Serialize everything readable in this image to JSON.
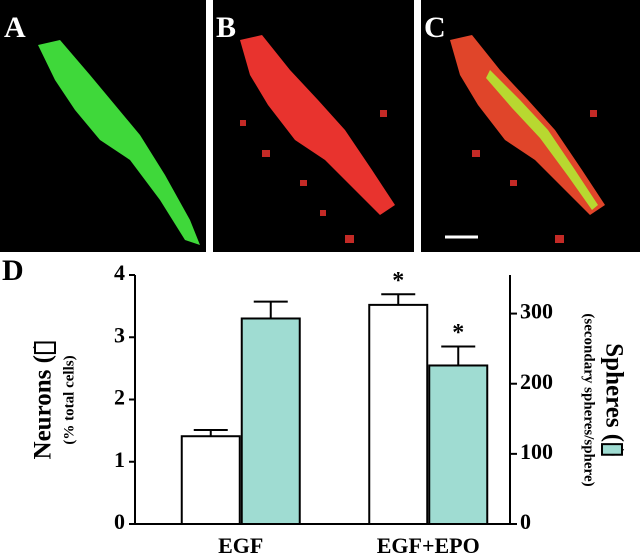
{
  "panels": [
    "A",
    "B",
    "C"
  ],
  "chart_label": "D",
  "chart_data": {
    "type": "bar",
    "categories": [
      "EGF",
      "EGF+EPO"
    ],
    "ylabel": "Neurons (   )",
    "ysublabel": "(% total cells)",
    "y2label": "Spheres (   )",
    "y2sublabel": "(secondary spheres/sphere)",
    "ylim": [
      0,
      4
    ],
    "yticks": [
      0,
      1,
      2,
      3,
      4
    ],
    "y2lim": [
      0,
      355
    ],
    "y2ticks": [
      0,
      100,
      200,
      300
    ],
    "series": [
      {
        "color": "#ffffff",
        "values": [
          1.41,
          3.52
        ],
        "errors": [
          0.1,
          0.17
        ],
        "significance": [
          null,
          "*"
        ]
      },
      {
        "color": "#9fdcd2",
        "axis": "y2",
        "values": [
          293,
          226
        ],
        "errors": [
          24,
          27
        ],
        "significance": [
          null,
          "*"
        ]
      }
    ]
  }
}
